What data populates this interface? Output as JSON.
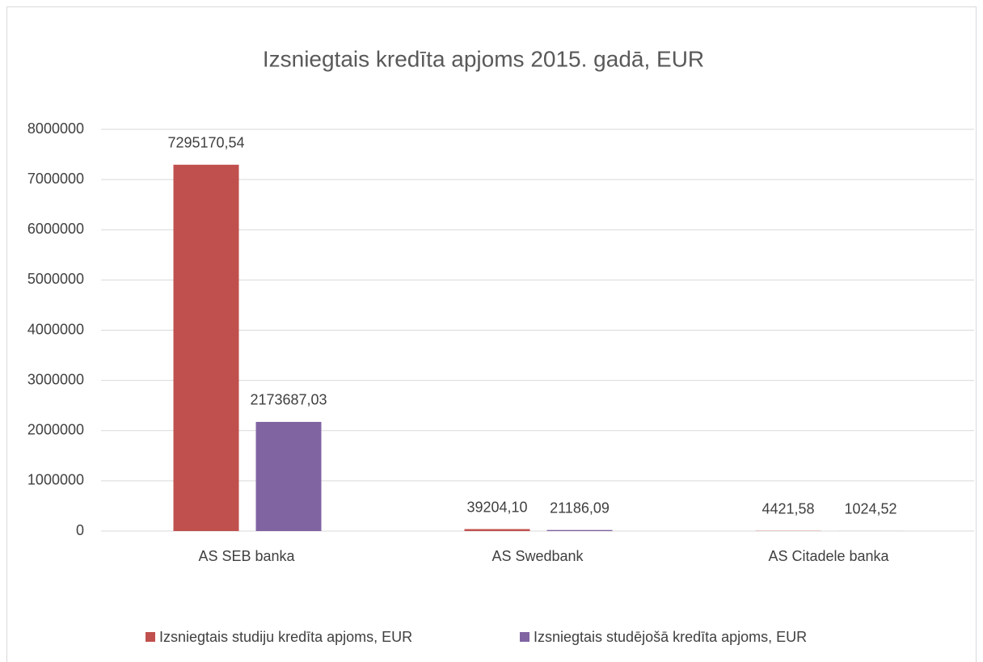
{
  "chart_data": {
    "type": "bar",
    "title": "Izsniegtais kredīta apjoms 2015. gadā, EUR",
    "categories": [
      "AS SEB banka",
      "AS Swedbank",
      "AS Citadele banka"
    ],
    "series": [
      {
        "name": "Izsniegtais studiju kredīta apjoms, EUR",
        "color": "#c0504d",
        "values": [
          7295170.54,
          39204.1,
          4421.58
        ],
        "value_labels": [
          "7295170,54",
          "39204,10",
          "4421,58"
        ]
      },
      {
        "name": "Izsniegtais studējošā kredīta apjoms, EUR",
        "color": "#8064a2",
        "values": [
          2173687.03,
          21186.09,
          1024.52
        ],
        "value_labels": [
          "2173687,03",
          "21186,09",
          "1024,52"
        ]
      }
    ],
    "ylim": [
      0,
      8000000
    ],
    "yticks": [
      0,
      1000000,
      2000000,
      3000000,
      4000000,
      5000000,
      6000000,
      7000000,
      8000000
    ],
    "grid": true,
    "legend": "bottom"
  }
}
